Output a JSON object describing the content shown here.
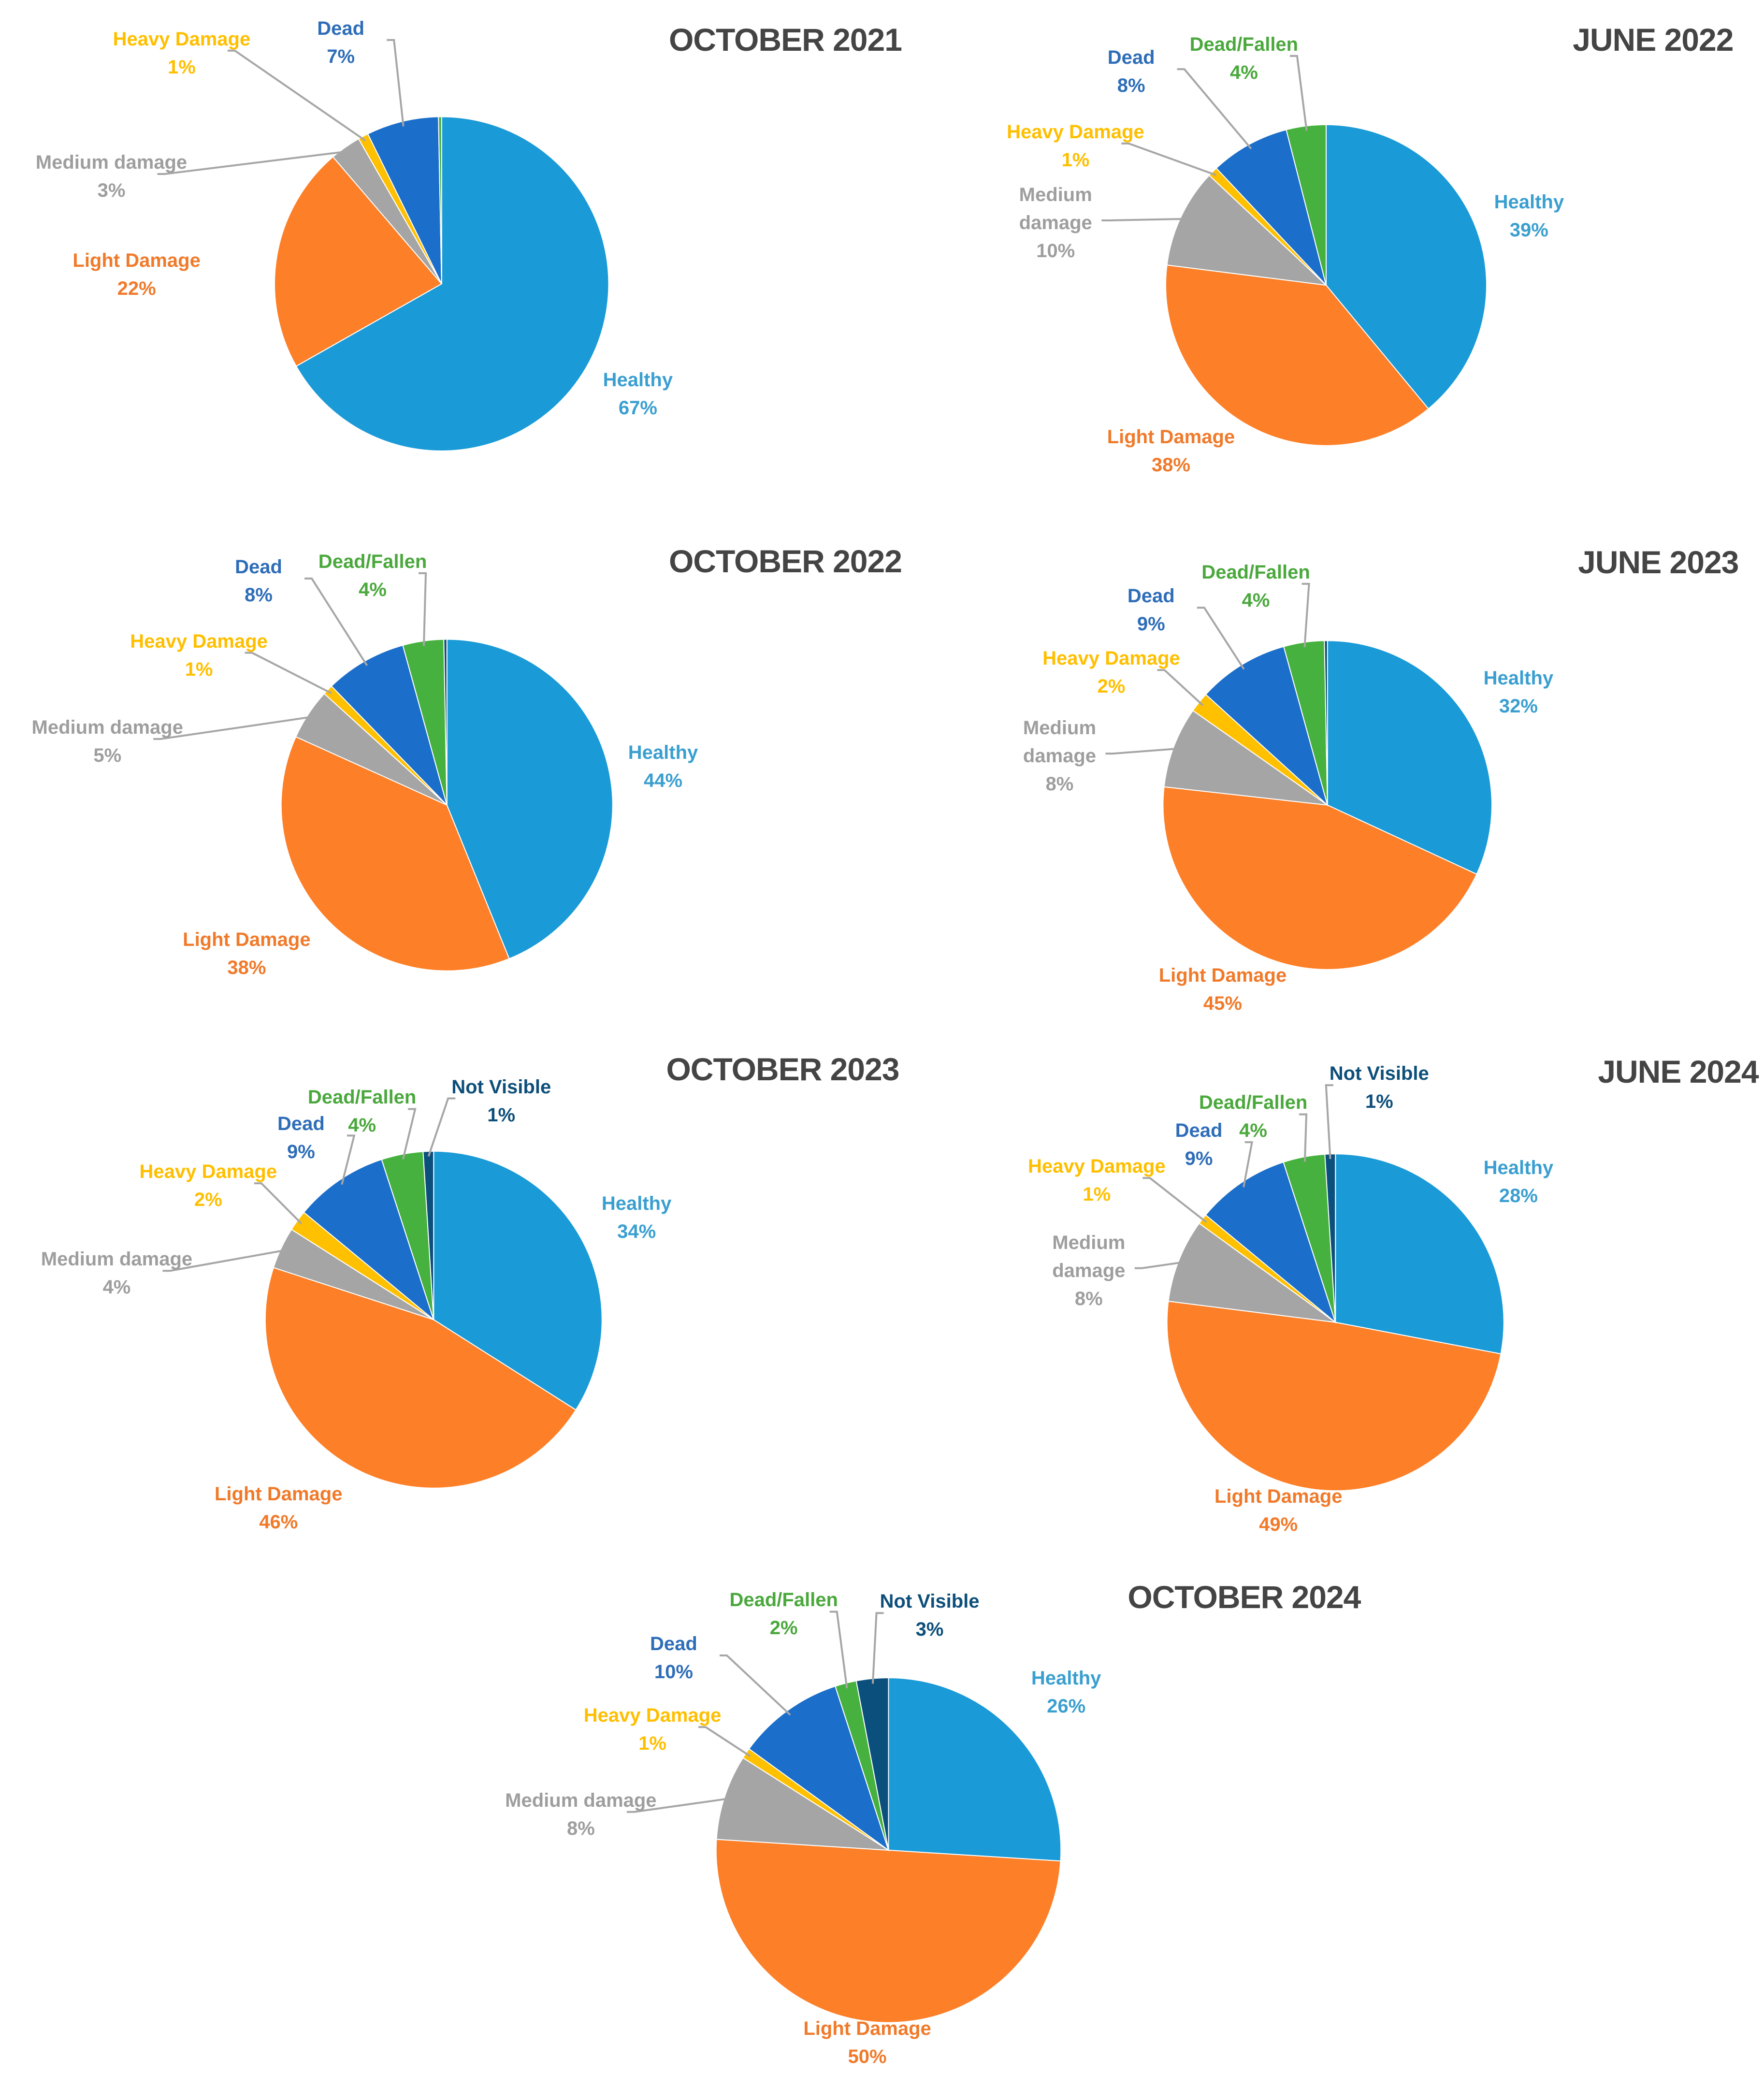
{
  "colors": {
    "Healthy": {
      "fill": "#1a9ad6",
      "text": "#3a9fd0"
    },
    "Light Damage": {
      "fill": "#fd7f27",
      "text": "#f07a2a"
    },
    "Medium damage": {
      "fill": "#a5a5a5",
      "text": "#9e9e9e"
    },
    "Heavy Damage": {
      "fill": "#ffc000",
      "text": "#ffbf00"
    },
    "Dead": {
      "fill": "#1b6ec9",
      "text": "#2e6db8"
    },
    "Dead/Fallen": {
      "fill": "#46b13e",
      "text": "#4aa83c"
    },
    "Not Visible": {
      "fill": "#0b4f7c",
      "text": "#0d4f7a"
    }
  },
  "chart_data": [
    {
      "type": "pie",
      "title": "OCTOBER 2021",
      "slices": [
        {
          "label": "Healthy",
          "value": 67
        },
        {
          "label": "Light Damage",
          "value": 22
        },
        {
          "label": "Medium damage",
          "value": 3
        },
        {
          "label": "Heavy Damage",
          "value": 1
        },
        {
          "label": "Dead",
          "value": 7
        },
        {
          "label": "",
          "category": "Dead/Fallen",
          "value": 0.3
        }
      ]
    },
    {
      "type": "pie",
      "title": "JUNE 2022",
      "slices": [
        {
          "label": "Healthy",
          "value": 39
        },
        {
          "label": "Light Damage",
          "value": 38
        },
        {
          "label": "Medium damage",
          "value": 10
        },
        {
          "label": "Heavy Damage",
          "value": 1
        },
        {
          "label": "Dead",
          "value": 8
        },
        {
          "label": "Dead/Fallen",
          "value": 4
        }
      ]
    },
    {
      "type": "pie",
      "title": "OCTOBER 2022",
      "slices": [
        {
          "label": "Healthy",
          "value": 44
        },
        {
          "label": "Light Damage",
          "value": 38
        },
        {
          "label": "Medium damage",
          "value": 5
        },
        {
          "label": "Heavy Damage",
          "value": 1
        },
        {
          "label": "Dead",
          "value": 8
        },
        {
          "label": "Dead/Fallen",
          "value": 4
        },
        {
          "label": "",
          "category": "Not Visible",
          "value": 0.3
        }
      ]
    },
    {
      "type": "pie",
      "title": "JUNE 2023",
      "slices": [
        {
          "label": "Healthy",
          "value": 32
        },
        {
          "label": "Light Damage",
          "value": 45
        },
        {
          "label": "Medium damage",
          "value": 8
        },
        {
          "label": "Heavy Damage",
          "value": 2
        },
        {
          "label": "Dead",
          "value": 9
        },
        {
          "label": "Dead/Fallen",
          "value": 4
        },
        {
          "label": "",
          "category": "Not Visible",
          "value": 0.3
        }
      ]
    },
    {
      "type": "pie",
      "title": "OCTOBER 2023",
      "slices": [
        {
          "label": "Healthy",
          "value": 34
        },
        {
          "label": "Light Damage",
          "value": 46
        },
        {
          "label": "Medium damage",
          "value": 4
        },
        {
          "label": "Heavy Damage",
          "value": 2
        },
        {
          "label": "Dead",
          "value": 9
        },
        {
          "label": "Dead/Fallen",
          "value": 4
        },
        {
          "label": "Not Visible",
          "value": 1
        }
      ]
    },
    {
      "type": "pie",
      "title": "JUNE 2024",
      "slices": [
        {
          "label": "Healthy",
          "value": 28
        },
        {
          "label": "Light Damage",
          "value": 49
        },
        {
          "label": "Medium damage",
          "value": 8
        },
        {
          "label": "Heavy Damage",
          "value": 1
        },
        {
          "label": "Dead",
          "value": 9
        },
        {
          "label": "Dead/Fallen",
          "value": 4
        },
        {
          "label": "Not Visible",
          "value": 1
        }
      ]
    },
    {
      "type": "pie",
      "title": "OCTOBER 2024",
      "slices": [
        {
          "label": "Healthy",
          "value": 26
        },
        {
          "label": "Light Damage",
          "value": 50
        },
        {
          "label": "Medium damage",
          "value": 8
        },
        {
          "label": "Heavy Damage",
          "value": 1
        },
        {
          "label": "Dead",
          "value": 10
        },
        {
          "label": "Dead/Fallen",
          "value": 2
        },
        {
          "label": "Not Visible",
          "value": 3
        }
      ]
    }
  ]
}
